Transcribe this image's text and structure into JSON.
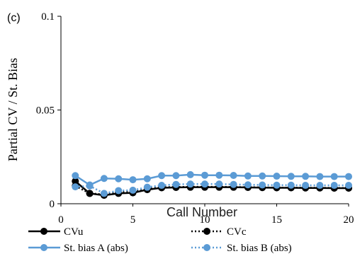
{
  "chart_data": {
    "type": "line",
    "panel_label": "(c)",
    "xlabel": "Call Number",
    "ylabel": "Partial CV / St. Bias",
    "xlim": [
      0,
      20
    ],
    "ylim": [
      0,
      0.1
    ],
    "x_ticks": [
      {
        "value": 0,
        "label": "0"
      },
      {
        "value": 5,
        "label": "5"
      },
      {
        "value": 10,
        "label": "10"
      },
      {
        "value": 15,
        "label": "15"
      },
      {
        "value": 20,
        "label": "20"
      }
    ],
    "y_ticks": [
      {
        "value": 0,
        "label": "0"
      },
      {
        "value": 0.05,
        "label": "0.05"
      },
      {
        "value": 0.1,
        "label": "0.1"
      }
    ],
    "grid": false,
    "legend_position": "bottom",
    "x": [
      1,
      2,
      3,
      4,
      5,
      6,
      7,
      8,
      9,
      10,
      11,
      12,
      13,
      14,
      15,
      16,
      17,
      18,
      19,
      20
    ],
    "series": [
      {
        "name": "CVu",
        "color": "#000000",
        "dash": "solid",
        "values": [
          0.012,
          0.0055,
          0.0045,
          0.0055,
          0.0058,
          0.0075,
          0.0085,
          0.0087,
          0.0088,
          0.0088,
          0.0088,
          0.0088,
          0.0087,
          0.0086,
          0.0085,
          0.0085,
          0.0084,
          0.0084,
          0.0083,
          0.0083
        ]
      },
      {
        "name": "CVc",
        "color": "#000000",
        "dash": "dotted",
        "values": [
          0.0095,
          0.0055,
          0.005,
          0.0062,
          0.0062,
          0.0078,
          0.0088,
          0.0089,
          0.009,
          0.009,
          0.009,
          0.0089,
          0.0088,
          0.0087,
          0.0086,
          0.0086,
          0.0085,
          0.0085,
          0.0084,
          0.0084
        ]
      },
      {
        "name": "St. bias A (abs)",
        "color": "#5b9bd5",
        "dash": "solid",
        "values": [
          0.015,
          0.01,
          0.0135,
          0.0133,
          0.0128,
          0.0133,
          0.015,
          0.015,
          0.0155,
          0.0152,
          0.0152,
          0.0151,
          0.0148,
          0.0148,
          0.0147,
          0.0146,
          0.0146,
          0.0145,
          0.0145,
          0.0145
        ]
      },
      {
        "name": "St. bias B (abs)",
        "color": "#5b9bd5",
        "dash": "dotted",
        "values": [
          0.009,
          0.0095,
          0.0055,
          0.007,
          0.0072,
          0.0088,
          0.0098,
          0.0103,
          0.0105,
          0.0105,
          0.0105,
          0.0103,
          0.0101,
          0.01,
          0.0099,
          0.0099,
          0.0098,
          0.0098,
          0.0098,
          0.0098
        ]
      }
    ]
  }
}
